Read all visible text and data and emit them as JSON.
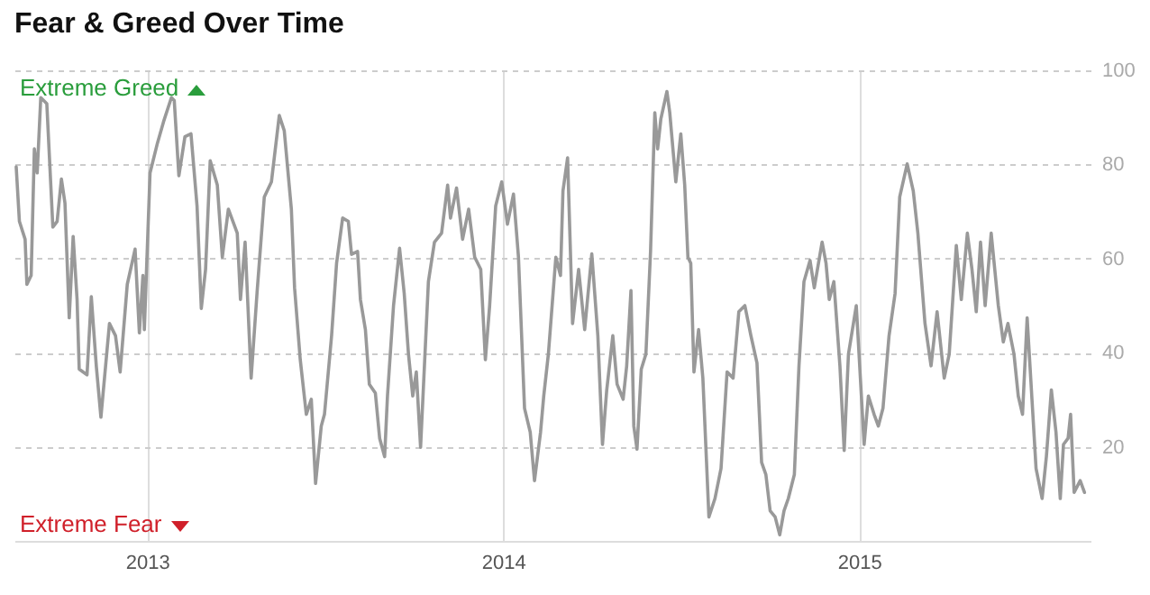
{
  "chart_data": {
    "type": "line",
    "title": "Fear & Greed Over Time",
    "annotations": [
      "Extreme Greed",
      "Extreme Fear"
    ],
    "x": [
      2012.632,
      2012.641,
      2012.657,
      2012.662,
      2012.674,
      2012.683,
      2012.691,
      2012.701,
      2012.718,
      2012.735,
      2012.747,
      2012.759,
      2012.769,
      2012.781,
      2012.792,
      2012.803,
      2012.809,
      2012.831,
      2012.843,
      2012.857,
      2012.87,
      2012.894,
      2012.911,
      2012.924,
      2012.944,
      2012.966,
      2012.978,
      2012.988,
      2012.992,
      2013.008,
      2013.029,
      2013.046,
      2013.068,
      2013.076,
      2013.089,
      2013.106,
      2013.123,
      2013.14,
      2013.152,
      2013.164,
      2013.177,
      2013.197,
      2013.211,
      2013.228,
      2013.253,
      2013.262,
      2013.275,
      2013.292,
      2013.309,
      2013.329,
      2013.349,
      2013.371,
      2013.385,
      2013.405,
      2013.414,
      2013.43,
      2013.447,
      2013.461,
      2013.473,
      2013.489,
      2013.498,
      2013.518,
      2013.532,
      2013.549,
      2013.565,
      2013.574,
      2013.591,
      2013.599,
      2013.613,
      2013.624,
      2013.641,
      2013.653,
      2013.667,
      2013.675,
      2013.692,
      2013.709,
      2013.722,
      2013.734,
      2013.746,
      2013.756,
      2013.768,
      2013.78,
      2013.79,
      2013.807,
      2013.827,
      2013.844,
      2013.852,
      2013.869,
      2013.886,
      2013.903,
      2013.92,
      2013.937,
      2013.95,
      2013.962,
      2013.979,
      2013.996,
      2014.012,
      2014.029,
      2014.043,
      2014.06,
      2014.076,
      2014.088,
      2014.105,
      2014.114,
      2014.127,
      2014.148,
      2014.161,
      2014.168,
      2014.181,
      2014.195,
      2014.212,
      2014.229,
      2014.249,
      2014.266,
      2014.279,
      2014.291,
      2014.308,
      2014.32,
      2014.337,
      2014.347,
      2014.359,
      2014.367,
      2014.376,
      2014.388,
      2014.401,
      2014.414,
      2014.426,
      2014.434,
      2014.443,
      2014.46,
      2014.468,
      2014.485,
      2014.499,
      2014.51,
      2014.519,
      2014.527,
      2014.536,
      2014.549,
      2014.561,
      2014.578,
      2014.595,
      2014.612,
      2014.629,
      2014.646,
      2014.662,
      2014.679,
      2014.696,
      2014.713,
      2014.726,
      2014.738,
      2014.75,
      2014.764,
      2014.777,
      2014.789,
      2014.801,
      2014.818,
      2014.831,
      2014.845,
      2014.862,
      2014.874,
      2014.896,
      2014.907,
      2014.916,
      2014.929,
      2014.946,
      2014.958,
      2014.97,
      2014.992,
      2015.014,
      2015.026,
      2015.042,
      2015.054,
      2015.067,
      2015.084,
      2015.101,
      2015.114,
      2015.135,
      2015.152,
      2015.165,
      2015.185,
      2015.202,
      2015.219,
      2015.239,
      2015.253,
      2015.273,
      2015.287,
      2015.304,
      2015.317,
      2015.329,
      2015.341,
      2015.354,
      2015.371,
      2015.391,
      2015.405,
      2015.418,
      2015.435,
      2015.447,
      2015.459,
      2015.472,
      2015.486,
      2015.497,
      2015.514,
      2015.526,
      2015.54,
      2015.553,
      2015.565,
      2015.574,
      2015.587,
      2015.594,
      2015.604,
      2015.621,
      2015.633
    ],
    "series": [
      {
        "color": "#999999",
        "values": [
          79.5,
          67.9,
          64.1,
          54.5,
          56.4,
          83.3,
          78.2,
          94.2,
          92.9,
          66.7,
          67.9,
          76.9,
          71.8,
          47.4,
          64.7,
          51.3,
          36.5,
          35.3,
          51.9,
          37.2,
          26.3,
          46.2,
          43.6,
          35.9,
          54.5,
          62,
          44.2,
          56.4,
          44.9,
          78.2,
          84.6,
          89.1,
          94.2,
          93.6,
          77.6,
          85.9,
          86.5,
          71.2,
          49.4,
          57.7,
          80.8,
          75.6,
          60.3,
          70.5,
          65.4,
          51.3,
          63.5,
          34.6,
          53.2,
          73.1,
          76.3,
          90.4,
          87.2,
          70.5,
          53.8,
          38.5,
          26.9,
          30.1,
          12.2,
          24.4,
          26.9,
          43.6,
          59.0,
          68.6,
          67.9,
          60.9,
          61.5,
          51.3,
          44.9,
          33.3,
          31.4,
          21.8,
          17.9,
          30.8,
          50.0,
          62.2,
          52.6,
          39.7,
          30.8,
          35.9,
          19.9,
          39.1,
          55.1,
          63.5,
          65.4,
          75.6,
          68.6,
          75.0,
          64.1,
          70.5,
          60.3,
          57.7,
          38.5,
          50.0,
          71.2,
          76.3,
          67.3,
          73.7,
          60.3,
          28.2,
          23.1,
          12.8,
          23.1,
          30.8,
          39.7,
          60.3,
          56.4,
          74.4,
          81.4,
          46.2,
          57.7,
          44.9,
          61,
          43.6,
          20.5,
          32.1,
          43.6,
          33.3,
          30.1,
          37.2,
          53.2,
          24.4,
          19.5,
          36.5,
          39.7,
          61.5,
          91.0,
          83.3,
          89.7,
          95.5,
          91.0,
          76.3,
          86.5,
          75.6,
          60.3,
          59.0,
          35.9,
          44.9,
          34.6,
          5.1,
          9.0,
          15.4,
          35.9,
          34.6,
          48.7,
          50.0,
          43.6,
          37.8,
          16.7,
          14.1,
          6.4,
          5.1,
          1.3,
          6.4,
          9.0,
          14.1,
          37.2,
          55.1,
          59.6,
          53.8,
          63.5,
          59.0,
          51.3,
          55.1,
          37.2,
          19.2,
          39.7,
          50.0,
          20.5,
          30.8,
          26.9,
          24.4,
          28.2,
          43.6,
          52.6,
          73.1,
          80.1,
          74.4,
          65.4,
          46.2,
          37.2,
          48.7,
          34.6,
          39.7,
          62.8,
          51.3,
          65.4,
          57.7,
          48.7,
          63.5,
          50.0,
          65.4,
          50.0,
          42.3,
          46.2,
          39.7,
          30.8,
          26.9,
          47.4,
          29.5,
          15.4,
          9.0,
          17.9,
          32.1,
          23.1,
          9.0,
          20.5,
          21.8,
          26.9,
          10.3,
          12.8,
          10.3
        ]
      }
    ],
    "xlim": [
      2012.627,
      2015.65
    ],
    "xticks": [
      2013,
      2014,
      2015
    ],
    "ylim": [
      0,
      100
    ],
    "yticks": [
      20,
      40,
      60,
      80,
      100
    ],
    "grid": true,
    "line_style": "solid",
    "marker": "none"
  }
}
